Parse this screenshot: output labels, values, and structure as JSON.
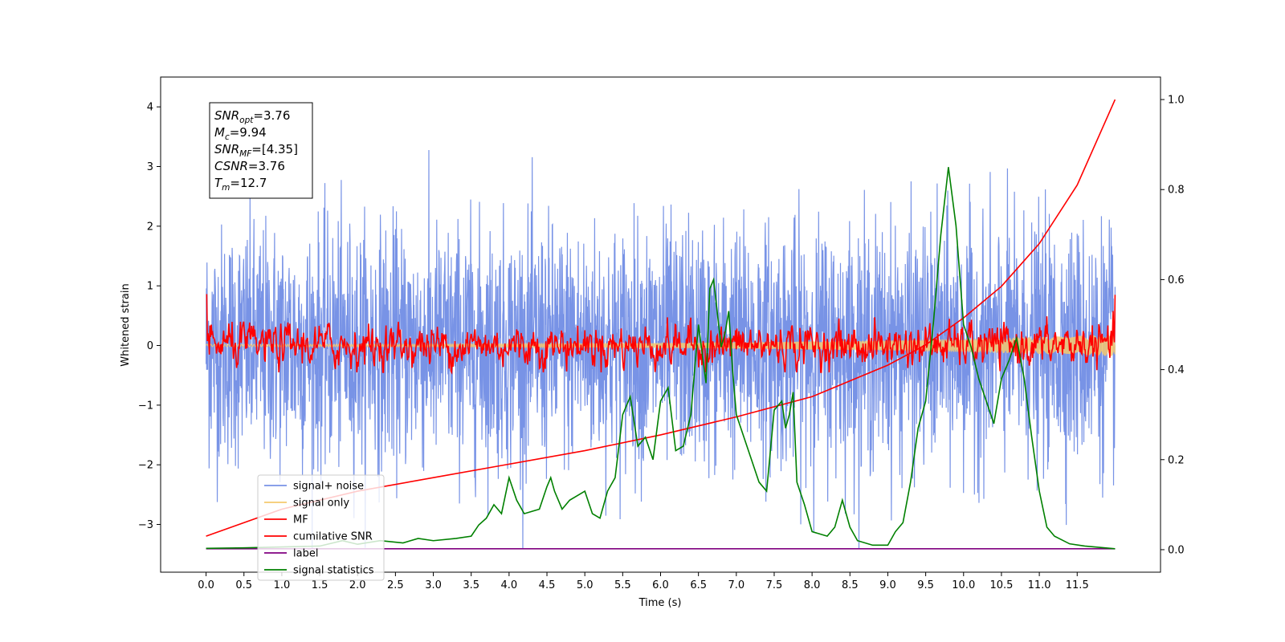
{
  "chart_data": {
    "type": "line",
    "title": "",
    "xlabel": "Time (s)",
    "ylabel": "Whitened strain",
    "xlim": [
      -0.6,
      12.6
    ],
    "ylim": [
      -3.8,
      4.5
    ],
    "y2lim": [
      -0.05,
      1.05
    ],
    "x_ticks": [
      0.0,
      0.5,
      1.0,
      1.5,
      2.0,
      2.5,
      3.0,
      3.5,
      4.0,
      4.5,
      5.0,
      5.5,
      6.0,
      6.5,
      7.0,
      7.5,
      8.0,
      8.5,
      9.0,
      9.5,
      10.0,
      10.5,
      11.0,
      11.5
    ],
    "x_tick_labels": [
      "0.0",
      "0.5",
      "1.0",
      "1.5",
      "2.0",
      "2.5",
      "3.0",
      "3.5",
      "4.0",
      "4.5",
      "5.0",
      "5.5",
      "6.0",
      "6.5",
      "7.0",
      "7.5",
      "8.0",
      "8.5",
      "9.0",
      "9.5",
      "10.0",
      "10.5",
      "11.0",
      "11.5"
    ],
    "y_ticks": [
      -3,
      -2,
      -1,
      0,
      1,
      2,
      3,
      4
    ],
    "y_tick_labels": [
      "−3",
      "−2",
      "−1",
      "0",
      "1",
      "2",
      "3",
      "4"
    ],
    "y2_ticks": [
      0.0,
      0.2,
      0.4,
      0.6,
      0.8,
      1.0
    ],
    "y2_tick_labels": [
      "0.0",
      "0.2",
      "0.4",
      "0.6",
      "0.8",
      "1.0"
    ],
    "grid": false,
    "legend_position": "lower-left",
    "annotation": [
      {
        "base": "SNR",
        "sub": "opt",
        "value": "=3.76"
      },
      {
        "base": "M",
        "sub": "c",
        "value": "=9.94"
      },
      {
        "base": "SNR",
        "sub": "MF",
        "value": "=[4.35]"
      },
      {
        "base": "CSNR",
        "sub": "",
        "value": "=3.76"
      },
      {
        "base": "T",
        "sub": "m",
        "value": "=12.7"
      }
    ],
    "series": [
      {
        "name": "signal+ noise",
        "color": "#7893e6",
        "axis": "left",
        "style": "noise",
        "x_range": [
          0.0,
          12.0
        ],
        "amplitude": 1.0
      },
      {
        "name": "signal only",
        "color": "#f5c96e",
        "axis": "left",
        "style": "chirp",
        "x_range": [
          0.0,
          12.0
        ],
        "start_amplitude": 0.02,
        "end_amplitude": 0.18
      },
      {
        "name": "MF",
        "color": "#ff0000",
        "axis": "left",
        "style": "filtered",
        "x_range": [
          0.0,
          12.0
        ],
        "amplitude": 0.25
      },
      {
        "name": "cumilative SNR",
        "color": "#ff0000",
        "axis": "right",
        "x": [
          0.0,
          1.0,
          2.0,
          3.0,
          4.0,
          5.0,
          6.0,
          7.0,
          8.0,
          9.0,
          9.5,
          10.0,
          10.5,
          11.0,
          11.5,
          12.0
        ],
        "y": [
          0.03,
          0.09,
          0.13,
          0.16,
          0.19,
          0.22,
          0.255,
          0.295,
          0.34,
          0.41,
          0.455,
          0.515,
          0.585,
          0.68,
          0.81,
          1.0
        ]
      },
      {
        "name": "label",
        "color": "#800080",
        "axis": "right",
        "x": [
          0.0,
          12.0
        ],
        "y": [
          0.002,
          0.002
        ]
      },
      {
        "name": "signal statistics",
        "color": "#008000",
        "axis": "right",
        "x": [
          0.0,
          0.5,
          1.0,
          1.5,
          1.8,
          2.0,
          2.3,
          2.6,
          2.8,
          3.0,
          3.3,
          3.5,
          3.6,
          3.7,
          3.8,
          3.9,
          4.0,
          4.1,
          4.2,
          4.4,
          4.5,
          4.55,
          4.6,
          4.7,
          4.8,
          4.9,
          5.0,
          5.1,
          5.2,
          5.3,
          5.4,
          5.5,
          5.6,
          5.7,
          5.8,
          5.9,
          6.0,
          6.1,
          6.2,
          6.3,
          6.4,
          6.5,
          6.6,
          6.65,
          6.7,
          6.8,
          6.85,
          6.9,
          6.95,
          7.0,
          7.1,
          7.2,
          7.3,
          7.4,
          7.5,
          7.6,
          7.65,
          7.7,
          7.75,
          7.8,
          7.9,
          8.0,
          8.2,
          8.3,
          8.4,
          8.5,
          8.6,
          8.8,
          9.0,
          9.1,
          9.2,
          9.3,
          9.4,
          9.5,
          9.6,
          9.7,
          9.8,
          9.9,
          10.0,
          10.1,
          10.2,
          10.3,
          10.4,
          10.5,
          10.6,
          10.7,
          10.8,
          10.9,
          11.0,
          11.1,
          11.2,
          11.4,
          11.6,
          12.0
        ],
        "y": [
          0.003,
          0.004,
          0.006,
          0.008,
          0.02,
          0.012,
          0.02,
          0.015,
          0.025,
          0.02,
          0.025,
          0.03,
          0.055,
          0.07,
          0.1,
          0.08,
          0.16,
          0.11,
          0.08,
          0.09,
          0.14,
          0.16,
          0.13,
          0.09,
          0.11,
          0.12,
          0.13,
          0.08,
          0.07,
          0.13,
          0.16,
          0.3,
          0.34,
          0.23,
          0.25,
          0.2,
          0.33,
          0.36,
          0.22,
          0.23,
          0.3,
          0.5,
          0.37,
          0.58,
          0.6,
          0.45,
          0.48,
          0.53,
          0.4,
          0.3,
          0.25,
          0.2,
          0.15,
          0.13,
          0.31,
          0.33,
          0.27,
          0.3,
          0.35,
          0.15,
          0.1,
          0.04,
          0.03,
          0.05,
          0.11,
          0.05,
          0.02,
          0.01,
          0.01,
          0.04,
          0.06,
          0.15,
          0.27,
          0.33,
          0.5,
          0.7,
          0.85,
          0.72,
          0.5,
          0.45,
          0.38,
          0.33,
          0.28,
          0.38,
          0.42,
          0.47,
          0.38,
          0.25,
          0.13,
          0.05,
          0.03,
          0.013,
          0.008,
          0.002
        ]
      }
    ]
  }
}
